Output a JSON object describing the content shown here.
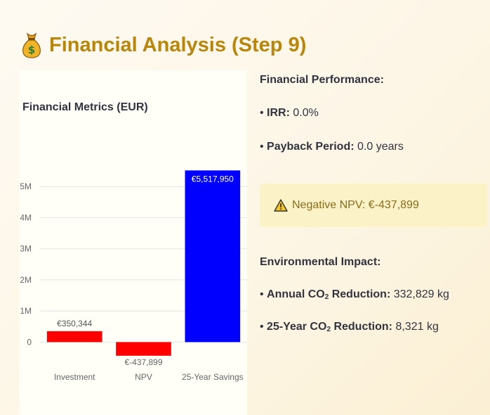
{
  "page": {
    "title": "Financial Analysis (Step 9)",
    "title_icon": "money-bag-icon"
  },
  "chart_data": {
    "type": "bar",
    "title": "Financial Metrics (EUR)",
    "categories": [
      "Investment",
      "NPV",
      "25-Year Savings"
    ],
    "values": [
      350344,
      -437899,
      5517950
    ],
    "data_labels": [
      "€350,344",
      "€-437,899",
      "€5,517,950"
    ],
    "colors": [
      "#ff0000",
      "#ff0000",
      "#0000ff"
    ],
    "y_ticks": [
      0,
      1000000,
      2000000,
      3000000,
      4000000,
      5000000
    ],
    "y_tick_labels": [
      "0",
      "1M",
      "2M",
      "3M",
      "4M",
      "5M"
    ],
    "ylim": [
      -760000,
      6700000
    ],
    "grid": true,
    "xlabel": "",
    "ylabel": ""
  },
  "financial": {
    "heading": "Financial Performance:",
    "irr_label": "IRR:",
    "irr_value": "0.0%",
    "payback_label": "Payback Period:",
    "payback_value": "0.0 years"
  },
  "warning": {
    "icon": "warning-icon",
    "text": "Negative NPV: €-437,899"
  },
  "environment": {
    "heading": "Environmental Impact:",
    "annual_label_prefix": "Annual CO",
    "annual_label_sub": "2",
    "annual_label_suffix": " Reduction:",
    "annual_value": "332,829 kg",
    "total_label_prefix": "25-Year CO",
    "total_label_sub": "2",
    "total_label_suffix": " Reduction:",
    "total_value": "8,321 kg"
  }
}
